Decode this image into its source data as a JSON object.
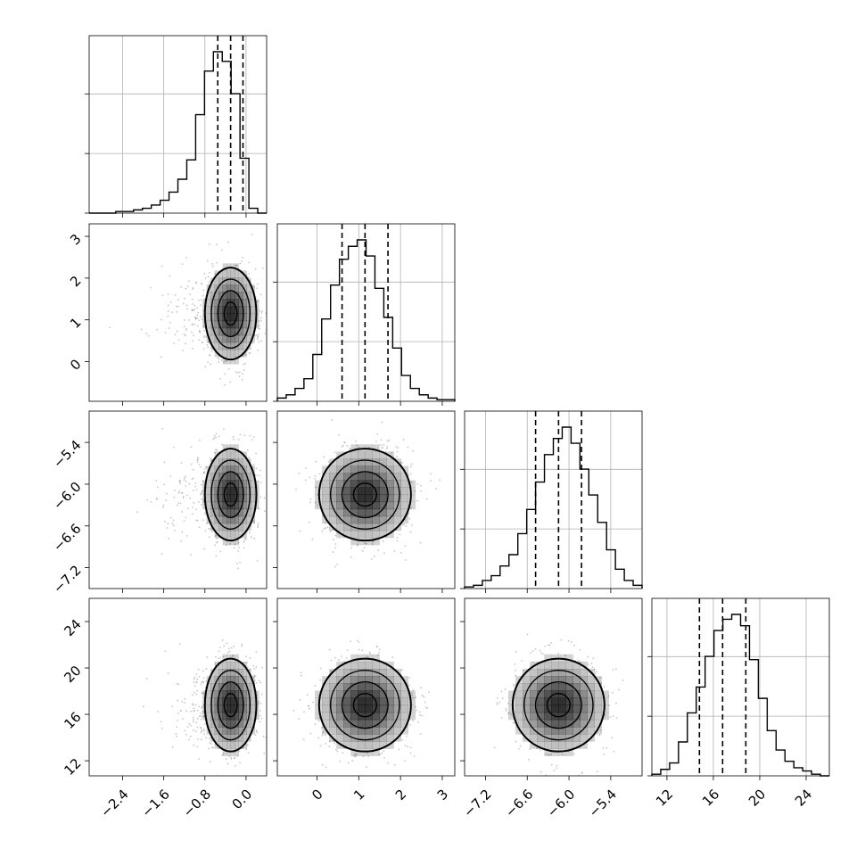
{
  "chart_data": {
    "type": "corner",
    "params": [
      {
        "range": [
          -3.05,
          0.4
        ],
        "ticks": [
          -2.4,
          -1.6,
          -0.8,
          0.0
        ],
        "tick_labels": [
          "−2.4",
          "−1.6",
          "−0.8",
          "0.0"
        ],
        "quantiles": [
          -0.55,
          -0.3,
          -0.06
        ]
      },
      {
        "range": [
          -0.95,
          3.3
        ],
        "ticks": [
          0,
          1,
          2,
          3
        ],
        "tick_labels": [
          "0",
          "1",
          "2",
          "3"
        ],
        "quantiles": [
          0.6,
          1.15,
          1.7
        ]
      },
      {
        "range": [
          -7.5,
          -4.95
        ],
        "ticks": [
          -7.2,
          -6.6,
          -6.0,
          -5.4
        ],
        "tick_labels": [
          "−7.2",
          "−6.6",
          "−6.0",
          "−5.4"
        ],
        "quantiles": [
          -6.48,
          -6.15,
          -5.82
        ]
      },
      {
        "range": [
          10.7,
          26.0
        ],
        "ticks": [
          12,
          16,
          20,
          24
        ],
        "tick_labels": [
          "12",
          "16",
          "20",
          "24"
        ],
        "quantiles": [
          14.8,
          16.8,
          18.8
        ]
      }
    ],
    "histograms": [
      {
        "bins": 20,
        "counts": [
          0,
          0,
          0,
          0.01,
          0.01,
          0.02,
          0.03,
          0.05,
          0.08,
          0.13,
          0.21,
          0.33,
          0.61,
          0.88,
          1.0,
          0.94,
          0.74,
          0.34,
          0.03,
          0
        ]
      },
      {
        "bins": 20,
        "counts": [
          0.02,
          0.04,
          0.08,
          0.14,
          0.29,
          0.51,
          0.72,
          0.88,
          0.96,
          1.0,
          0.9,
          0.7,
          0.52,
          0.33,
          0.16,
          0.08,
          0.04,
          0.02,
          0.01,
          0.01
        ]
      },
      {
        "bins": 20,
        "counts": [
          0.01,
          0.02,
          0.05,
          0.08,
          0.14,
          0.21,
          0.34,
          0.49,
          0.66,
          0.83,
          0.93,
          1.0,
          0.9,
          0.74,
          0.58,
          0.41,
          0.24,
          0.12,
          0.05,
          0.02
        ]
      },
      {
        "bins": 20,
        "counts": [
          0.01,
          0.04,
          0.08,
          0.21,
          0.39,
          0.55,
          0.74,
          0.9,
          0.97,
          1.0,
          0.93,
          0.72,
          0.48,
          0.28,
          0.16,
          0.09,
          0.05,
          0.03,
          0.01,
          0.0
        ]
      }
    ],
    "joint": [
      {
        "row": 1,
        "col": 0,
        "mean": [
          -0.3,
          1.15
        ],
        "sd": [
          0.25,
          0.55
        ]
      },
      {
        "row": 2,
        "col": 0,
        "mean": [
          -0.3,
          -6.15
        ],
        "sd": [
          0.25,
          0.33
        ]
      },
      {
        "row": 2,
        "col": 1,
        "mean": [
          1.15,
          -6.15
        ],
        "sd": [
          0.55,
          0.33
        ]
      },
      {
        "row": 3,
        "col": 0,
        "mean": [
          -0.3,
          16.8
        ],
        "sd": [
          0.25,
          2.0
        ]
      },
      {
        "row": 3,
        "col": 1,
        "mean": [
          1.15,
          16.8
        ],
        "sd": [
          0.55,
          2.0
        ]
      },
      {
        "row": 3,
        "col": 2,
        "mean": [
          -6.15,
          16.8
        ],
        "sd": [
          0.33,
          2.0
        ]
      }
    ],
    "contour_levels": [
      0.5,
      1.0,
      1.5,
      2.0
    ],
    "grid": true,
    "colors": {
      "lines": "#000000",
      "grid": "#b0b0b0",
      "points": "#a0a0a0",
      "density": "#000000"
    }
  }
}
